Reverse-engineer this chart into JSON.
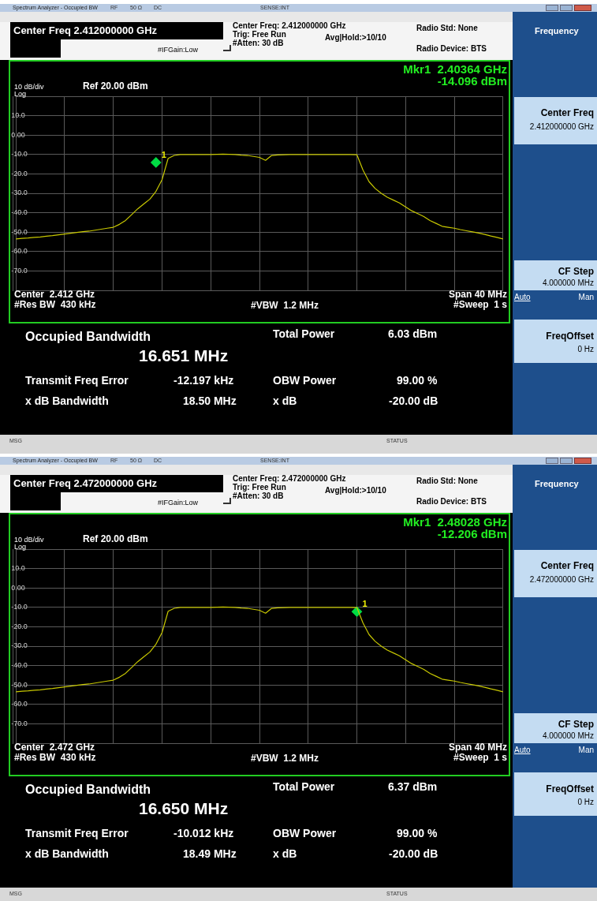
{
  "chart_data": [
    {
      "type": "line",
      "title": "Spectrum Analyzer - Occupied BW",
      "categories": [
        null,
        null,
        null,
        null,
        null,
        null,
        null,
        null,
        null,
        null,
        null,
        null,
        null,
        null,
        null,
        null,
        null,
        null,
        null,
        null,
        null,
        null,
        null,
        null,
        null,
        null,
        null,
        null,
        null,
        null,
        null,
        null,
        null,
        null,
        null,
        null,
        null,
        null,
        null,
        null,
        null,
        null,
        null,
        null,
        null,
        null,
        null,
        null,
        null,
        null,
        null,
        null,
        null,
        null,
        null,
        null,
        null,
        null,
        null,
        null,
        null,
        null,
        null,
        null,
        null,
        null,
        null,
        null,
        null,
        null,
        null,
        null,
        null,
        null,
        null,
        null,
        null,
        null,
        null,
        null,
        null
      ],
      "series": [
        {
          "color": "#c8c800",
          "values": [
            -53.5,
            -53.2,
            -53,
            -52.7,
            -52.5,
            -52.1,
            -51.8,
            -51.4,
            -51,
            -50.6,
            -50.2,
            -49.8,
            -49.5,
            -49,
            -48.5,
            -48,
            -47.5,
            -46,
            -44,
            -41,
            -38,
            -35.5,
            -33,
            -29,
            -23,
            -12,
            -10.5,
            -10,
            -10,
            -10,
            -10,
            -10,
            -10,
            -9.9,
            -9.8,
            -9.9,
            -10,
            -10.3,
            -10.5,
            -11,
            -11.5,
            -13,
            -10.5,
            -10.2,
            -10.1,
            -10,
            -10,
            -10,
            -10,
            -10,
            -10,
            -10,
            -10,
            -10,
            -10,
            -10,
            -10.1,
            -18,
            -24,
            -27.5,
            -30,
            -32,
            -33.5,
            -35,
            -37,
            -39,
            -40.5,
            -42,
            -44,
            -45.5,
            -47,
            -47.5,
            -48,
            -48.7,
            -49.3,
            -49.9,
            -50.5,
            -51.2,
            -52,
            -52.7,
            -53.5
          ]
        },
        {
          "type": "scatter",
          "marker": "diamond",
          "color": "#00dd44",
          "values": [
            null,
            null,
            null,
            null,
            null,
            null,
            null,
            null,
            null,
            null,
            null,
            null,
            null,
            null,
            null,
            null,
            null,
            null,
            null,
            null,
            null,
            null,
            null,
            -14.096,
            null,
            null,
            null,
            null,
            null,
            null,
            null,
            null,
            null,
            null,
            null,
            null,
            null,
            null,
            null,
            null,
            null,
            null,
            null,
            null,
            null,
            null,
            null,
            null,
            null,
            null,
            null,
            null,
            null,
            null,
            null,
            null,
            null,
            null,
            null,
            null,
            null,
            null,
            null,
            null,
            null,
            null,
            null,
            null,
            null,
            null,
            null,
            null,
            null,
            null,
            null,
            null,
            null,
            null,
            null,
            null,
            null
          ]
        }
      ],
      "ylim": [
        -80,
        20
      ],
      "yticks": [
        {
          "value": 20,
          "label": null
        },
        {
          "value": 10,
          "label": "10.0"
        },
        {
          "value": 0,
          "label": "0.00"
        },
        {
          "value": -10,
          "label": "-10.0"
        },
        {
          "value": -20,
          "label": "-20.0"
        },
        {
          "value": -30,
          "label": "-30.0"
        },
        {
          "value": -40,
          "label": "-40.0"
        },
        {
          "value": -50,
          "label": "-50.0"
        },
        {
          "value": -60,
          "label": "-60.0"
        },
        {
          "value": -70,
          "label": "-70.0"
        },
        {
          "value": -80,
          "label": null
        }
      ],
      "grid": true,
      "tick_labels": "y",
      "annotations": [
        "RF",
        "50 Ω",
        "DC",
        "SENSE:INT",
        "Center Freq 2.412000000 GHz",
        "Center Freq: 2.412000000 GHz",
        "Trig: Free Run",
        "Avg|Hold:>10/10",
        "#Atten: 30 dB",
        "#IFGain:Low",
        "Radio Std: None",
        "Radio Device: BTS",
        "Mkr1  2.40364 GHz",
        "-14.096 dBm",
        "10 dB/div",
        "Ref 20.00 dBm",
        "Log",
        "Center  2.412 GHz",
        "#Res BW  430 kHz",
        "#VBW  1.2 MHz",
        "Span 40 MHz",
        "#Sweep  1 s",
        "Occupied Bandwidth",
        "16.651 MHz",
        "Total Power",
        "6.03 dBm",
        "Transmit Freq Error",
        "-12.197 kHz",
        "OBW Power",
        "99.00 %",
        "x dB Bandwidth",
        "18.50 MHz",
        "x dB",
        "-20.00 dB",
        "MSG",
        "STATUS",
        "Frequency",
        "Center Freq",
        "2.412000000 GHz",
        "CF Step",
        "4.000000 MHz",
        "Auto",
        "Man",
        "FreqOffset",
        "0 Hz",
        "1"
      ]
    },
    {
      "type": "line",
      "title": "Spectrum Analyzer - Occupied BW",
      "categories": [
        null,
        null,
        null,
        null,
        null,
        null,
        null,
        null,
        null,
        null,
        null,
        null,
        null,
        null,
        null,
        null,
        null,
        null,
        null,
        null,
        null,
        null,
        null,
        null,
        null,
        null,
        null,
        null,
        null,
        null,
        null,
        null,
        null,
        null,
        null,
        null,
        null,
        null,
        null,
        null,
        null,
        null,
        null,
        null,
        null,
        null,
        null,
        null,
        null,
        null,
        null,
        null,
        null,
        null,
        null,
        null,
        null,
        null,
        null,
        null,
        null,
        null,
        null,
        null,
        null,
        null,
        null,
        null,
        null,
        null,
        null,
        null,
        null,
        null,
        null,
        null,
        null,
        null,
        null,
        null,
        null
      ],
      "series": [
        {
          "color": "#c8c800",
          "values": [
            -53.5,
            -53.2,
            -53,
            -52.7,
            -52.5,
            -52.1,
            -51.8,
            -51.4,
            -51,
            -50.6,
            -50.2,
            -49.8,
            -49.5,
            -49,
            -48.5,
            -48,
            -47.5,
            -46,
            -44,
            -41,
            -38,
            -35.5,
            -33,
            -29,
            -23,
            -12,
            -10.5,
            -10,
            -10,
            -10,
            -10,
            -10,
            -10,
            -9.9,
            -9.8,
            -9.9,
            -10,
            -10.3,
            -10.5,
            -11,
            -11.5,
            -13,
            -10.5,
            -10.2,
            -10.1,
            -10,
            -10,
            -10,
            -10,
            -10,
            -10,
            -10,
            -10,
            -10,
            -10,
            -10,
            -10.1,
            -18,
            -24,
            -27.5,
            -30,
            -32,
            -33.5,
            -35,
            -37,
            -39,
            -40.5,
            -42,
            -44,
            -45.5,
            -47,
            -47.5,
            -48,
            -48.7,
            -49.3,
            -49.9,
            -50.5,
            -51.2,
            -52,
            -52.7,
            -53.5
          ]
        },
        {
          "type": "scatter",
          "marker": "diamond",
          "color": "#00dd44",
          "values": [
            null,
            null,
            null,
            null,
            null,
            null,
            null,
            null,
            null,
            null,
            null,
            null,
            null,
            null,
            null,
            null,
            null,
            null,
            null,
            null,
            null,
            null,
            null,
            null,
            null,
            null,
            null,
            null,
            null,
            null,
            null,
            null,
            null,
            null,
            null,
            null,
            null,
            null,
            null,
            null,
            null,
            null,
            null,
            null,
            null,
            null,
            null,
            null,
            null,
            null,
            null,
            null,
            null,
            null,
            null,
            null,
            -12.206,
            null,
            null,
            null,
            null,
            null,
            null,
            null,
            null,
            null,
            null,
            null,
            null,
            null,
            null,
            null,
            null,
            null,
            null,
            null,
            null,
            null,
            null,
            null,
            null
          ]
        }
      ],
      "ylim": [
        -80,
        20
      ],
      "yticks": [
        {
          "value": 20,
          "label": null
        },
        {
          "value": 10,
          "label": "10.0"
        },
        {
          "value": 0,
          "label": "0.00"
        },
        {
          "value": -10,
          "label": "-10.0"
        },
        {
          "value": -20,
          "label": "-20.0"
        },
        {
          "value": -30,
          "label": "-30.0"
        },
        {
          "value": -40,
          "label": "-40.0"
        },
        {
          "value": -50,
          "label": "-50.0"
        },
        {
          "value": -60,
          "label": "-60.0"
        },
        {
          "value": -70,
          "label": "-70.0"
        },
        {
          "value": -80,
          "label": null
        }
      ],
      "grid": true,
      "tick_labels": "y",
      "annotations": [
        "RF",
        "50 Ω",
        "DC",
        "SENSE:INT",
        "Center Freq 2.472000000 GHz",
        "Center Freq: 2.472000000 GHz",
        "Trig: Free Run",
        "Avg|Hold:>10/10",
        "#Atten: 30 dB",
        "#IFGain:Low",
        "Radio Std: None",
        "Radio Device: BTS",
        "Mkr1  2.48028 GHz",
        "-12.206 dBm",
        "10 dB/div",
        "Ref 20.00 dBm",
        "Log",
        "Center  2.472 GHz",
        "#Res BW  430 kHz",
        "#VBW  1.2 MHz",
        "Span 40 MHz",
        "#Sweep  1 s",
        "Occupied Bandwidth",
        "16.650 MHz",
        "Total Power",
        "6.37 dBm",
        "Transmit Freq Error",
        "-10.012 kHz",
        "OBW Power",
        "99.00 %",
        "x dB Bandwidth",
        "18.49 MHz",
        "x dB",
        "-20.00 dB",
        "MSG",
        "STATUS",
        "Frequency",
        "Center Freq",
        "2.472000000 GHz",
        "CF Step",
        "4.000000 MHz",
        "Auto",
        "Man",
        "FreqOffset",
        "0 Hz",
        "1"
      ]
    }
  ]
}
